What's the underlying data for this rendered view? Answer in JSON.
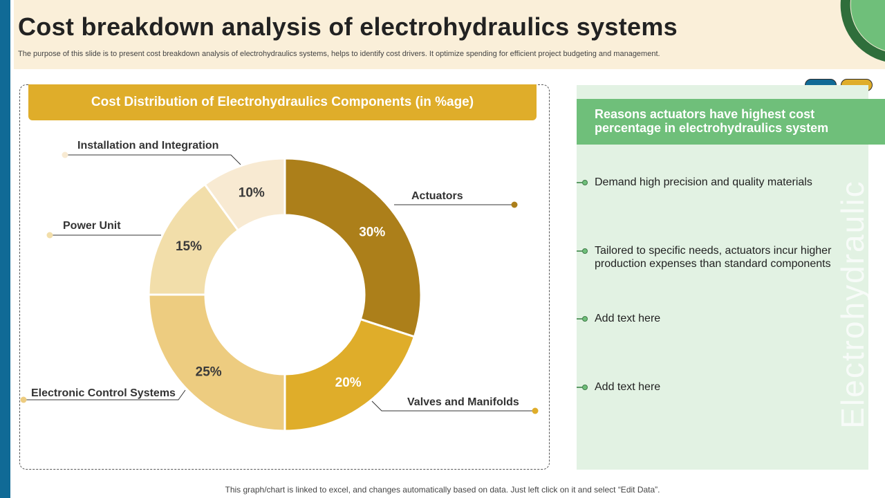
{
  "header": {
    "title": "Cost breakdown analysis of electrohydraulics systems",
    "subtitle": "The purpose of this slide is to present cost breakdown analysis of electrohydraulics systems, helps to identify cost drivers. It optimize spending for efficient project budgeting and management."
  },
  "chart_banner": "Cost Distribution of Electrohydraulics Components (in %age)",
  "chart_data": {
    "type": "pie",
    "variant": "donut",
    "title": "Cost Distribution of Electrohydraulics Components (in %age)",
    "unit": "%",
    "slices": [
      {
        "label": "Actuators",
        "value": 30,
        "display": "30%",
        "color": "#ac7f1a"
      },
      {
        "label": "Valves and Manifolds",
        "value": 20,
        "display": "20%",
        "color": "#dfad2a"
      },
      {
        "label": "Electronic Control Systems",
        "value": 25,
        "display": "25%",
        "color": "#edcc80"
      },
      {
        "label": "Power Unit",
        "value": 15,
        "display": "15%",
        "color": "#f2deaa"
      },
      {
        "label": "Installation and Integration",
        "value": 10,
        "display": "10%",
        "color": "#f8ead2"
      }
    ]
  },
  "reasons": {
    "heading": "Reasons actuators have highest cost percentage in electrohydraulics system",
    "items": [
      "Demand high precision and quality materials",
      "Tailored to specific needs, actuators incur higher production expenses than standard components",
      "Add text here",
      "Add text here"
    ]
  },
  "watermark": "Electrohydraulic",
  "footer": "This graph/chart is linked to excel, and changes automatically based on data. Just left click on it and select “Edit Data”.",
  "colors": {
    "accent_blue": "#106a96",
    "accent_gold": "#dfad2a",
    "accent_green": "#6fbf7a",
    "header_bg": "#faefd9",
    "panel_bg": "#e2f2e3"
  }
}
